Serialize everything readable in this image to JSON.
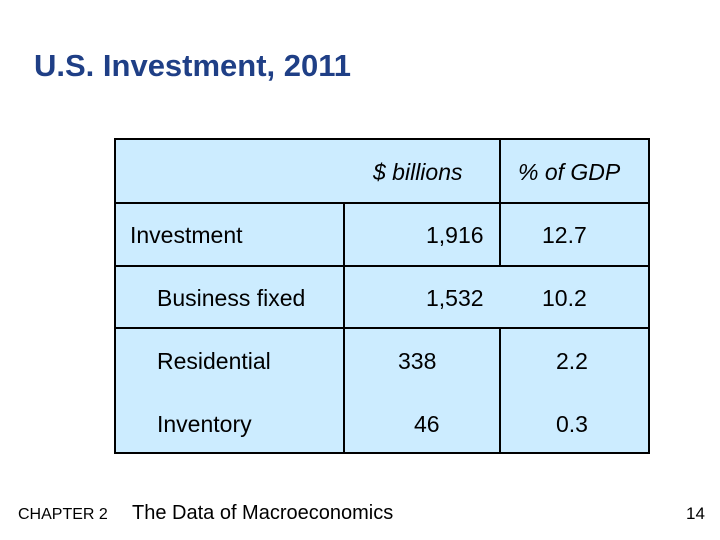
{
  "slide": {
    "title": "U.S. Investment, 2011",
    "table": {
      "headers": [
        "$ billions",
        "% of GDP"
      ],
      "rows": [
        {
          "label": "Investment",
          "billions": "1,916",
          "pct_gdp": "12.7"
        },
        {
          "label": "Business fixed",
          "billions": "1,532",
          "pct_gdp": "10.2"
        },
        {
          "label": "Residential",
          "billions": "338",
          "pct_gdp": "2.2"
        },
        {
          "label": "Inventory",
          "billions": "46",
          "pct_gdp": "0.3"
        }
      ]
    },
    "footer": {
      "chapter": "CHAPTER 2",
      "book_title": "The Data of Macroeconomics",
      "page_number": "14"
    },
    "colors": {
      "title": "#1f3f86",
      "table_fill": "#ccecff",
      "border": "#000000"
    }
  }
}
